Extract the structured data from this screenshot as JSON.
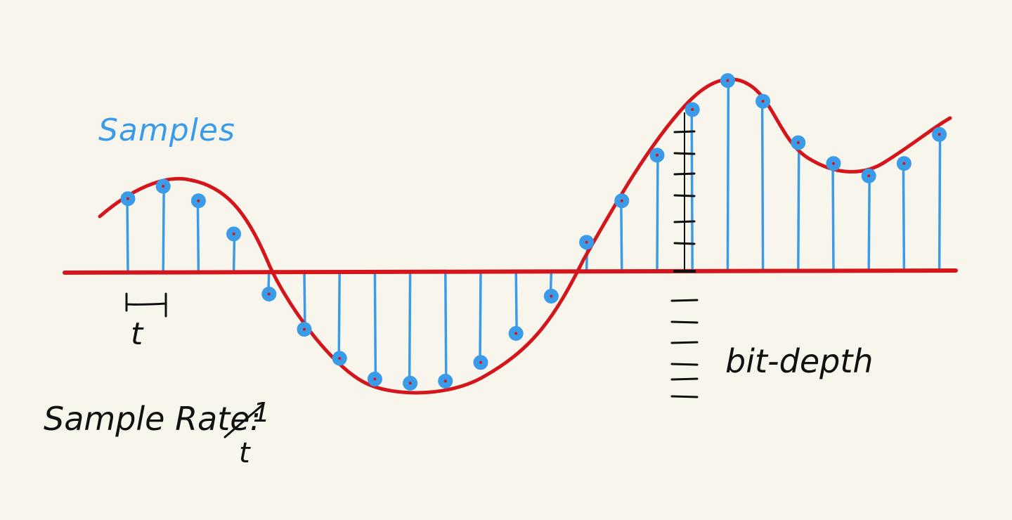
{
  "labels": {
    "samples": "Samples",
    "interval": "t",
    "bit_depth": "bit-depth",
    "sample_rate": "Sample Rate:",
    "rate_numerator": "1",
    "rate_denominator": "t"
  },
  "colors": {
    "background": "#f8f6ec",
    "signal": "#d4161c",
    "samples": "#3a9be8",
    "ink": "#111111"
  },
  "samples": [
    {
      "t": 0,
      "level": 1.75
    },
    {
      "t": 1,
      "level": 2.05
    },
    {
      "t": 2,
      "level": 1.7
    },
    {
      "t": 3,
      "level": 0.9
    },
    {
      "t": 4,
      "level": -0.55
    },
    {
      "t": 5,
      "level": -1.4
    },
    {
      "t": 6,
      "level": -2.1
    },
    {
      "t": 7,
      "level": -2.6
    },
    {
      "t": 8,
      "level": -2.7
    },
    {
      "t": 9,
      "level": -2.65
    },
    {
      "t": 10,
      "level": -2.2
    },
    {
      "t": 11,
      "level": -1.5
    },
    {
      "t": 12,
      "level": -0.6
    },
    {
      "t": 13,
      "level": 0.7
    },
    {
      "t": 14,
      "level": 1.7
    },
    {
      "t": 15,
      "level": 2.8
    },
    {
      "t": 16,
      "level": 3.9
    },
    {
      "t": 17,
      "level": 4.6
    },
    {
      "t": 18,
      "level": 4.1
    },
    {
      "t": 19,
      "level": 3.1
    },
    {
      "t": 20,
      "level": 2.6
    },
    {
      "t": 21,
      "level": 2.3
    },
    {
      "t": 22,
      "level": 2.6
    },
    {
      "t": 23,
      "level": 3.3
    }
  ],
  "bit_depth_steps": 8
}
